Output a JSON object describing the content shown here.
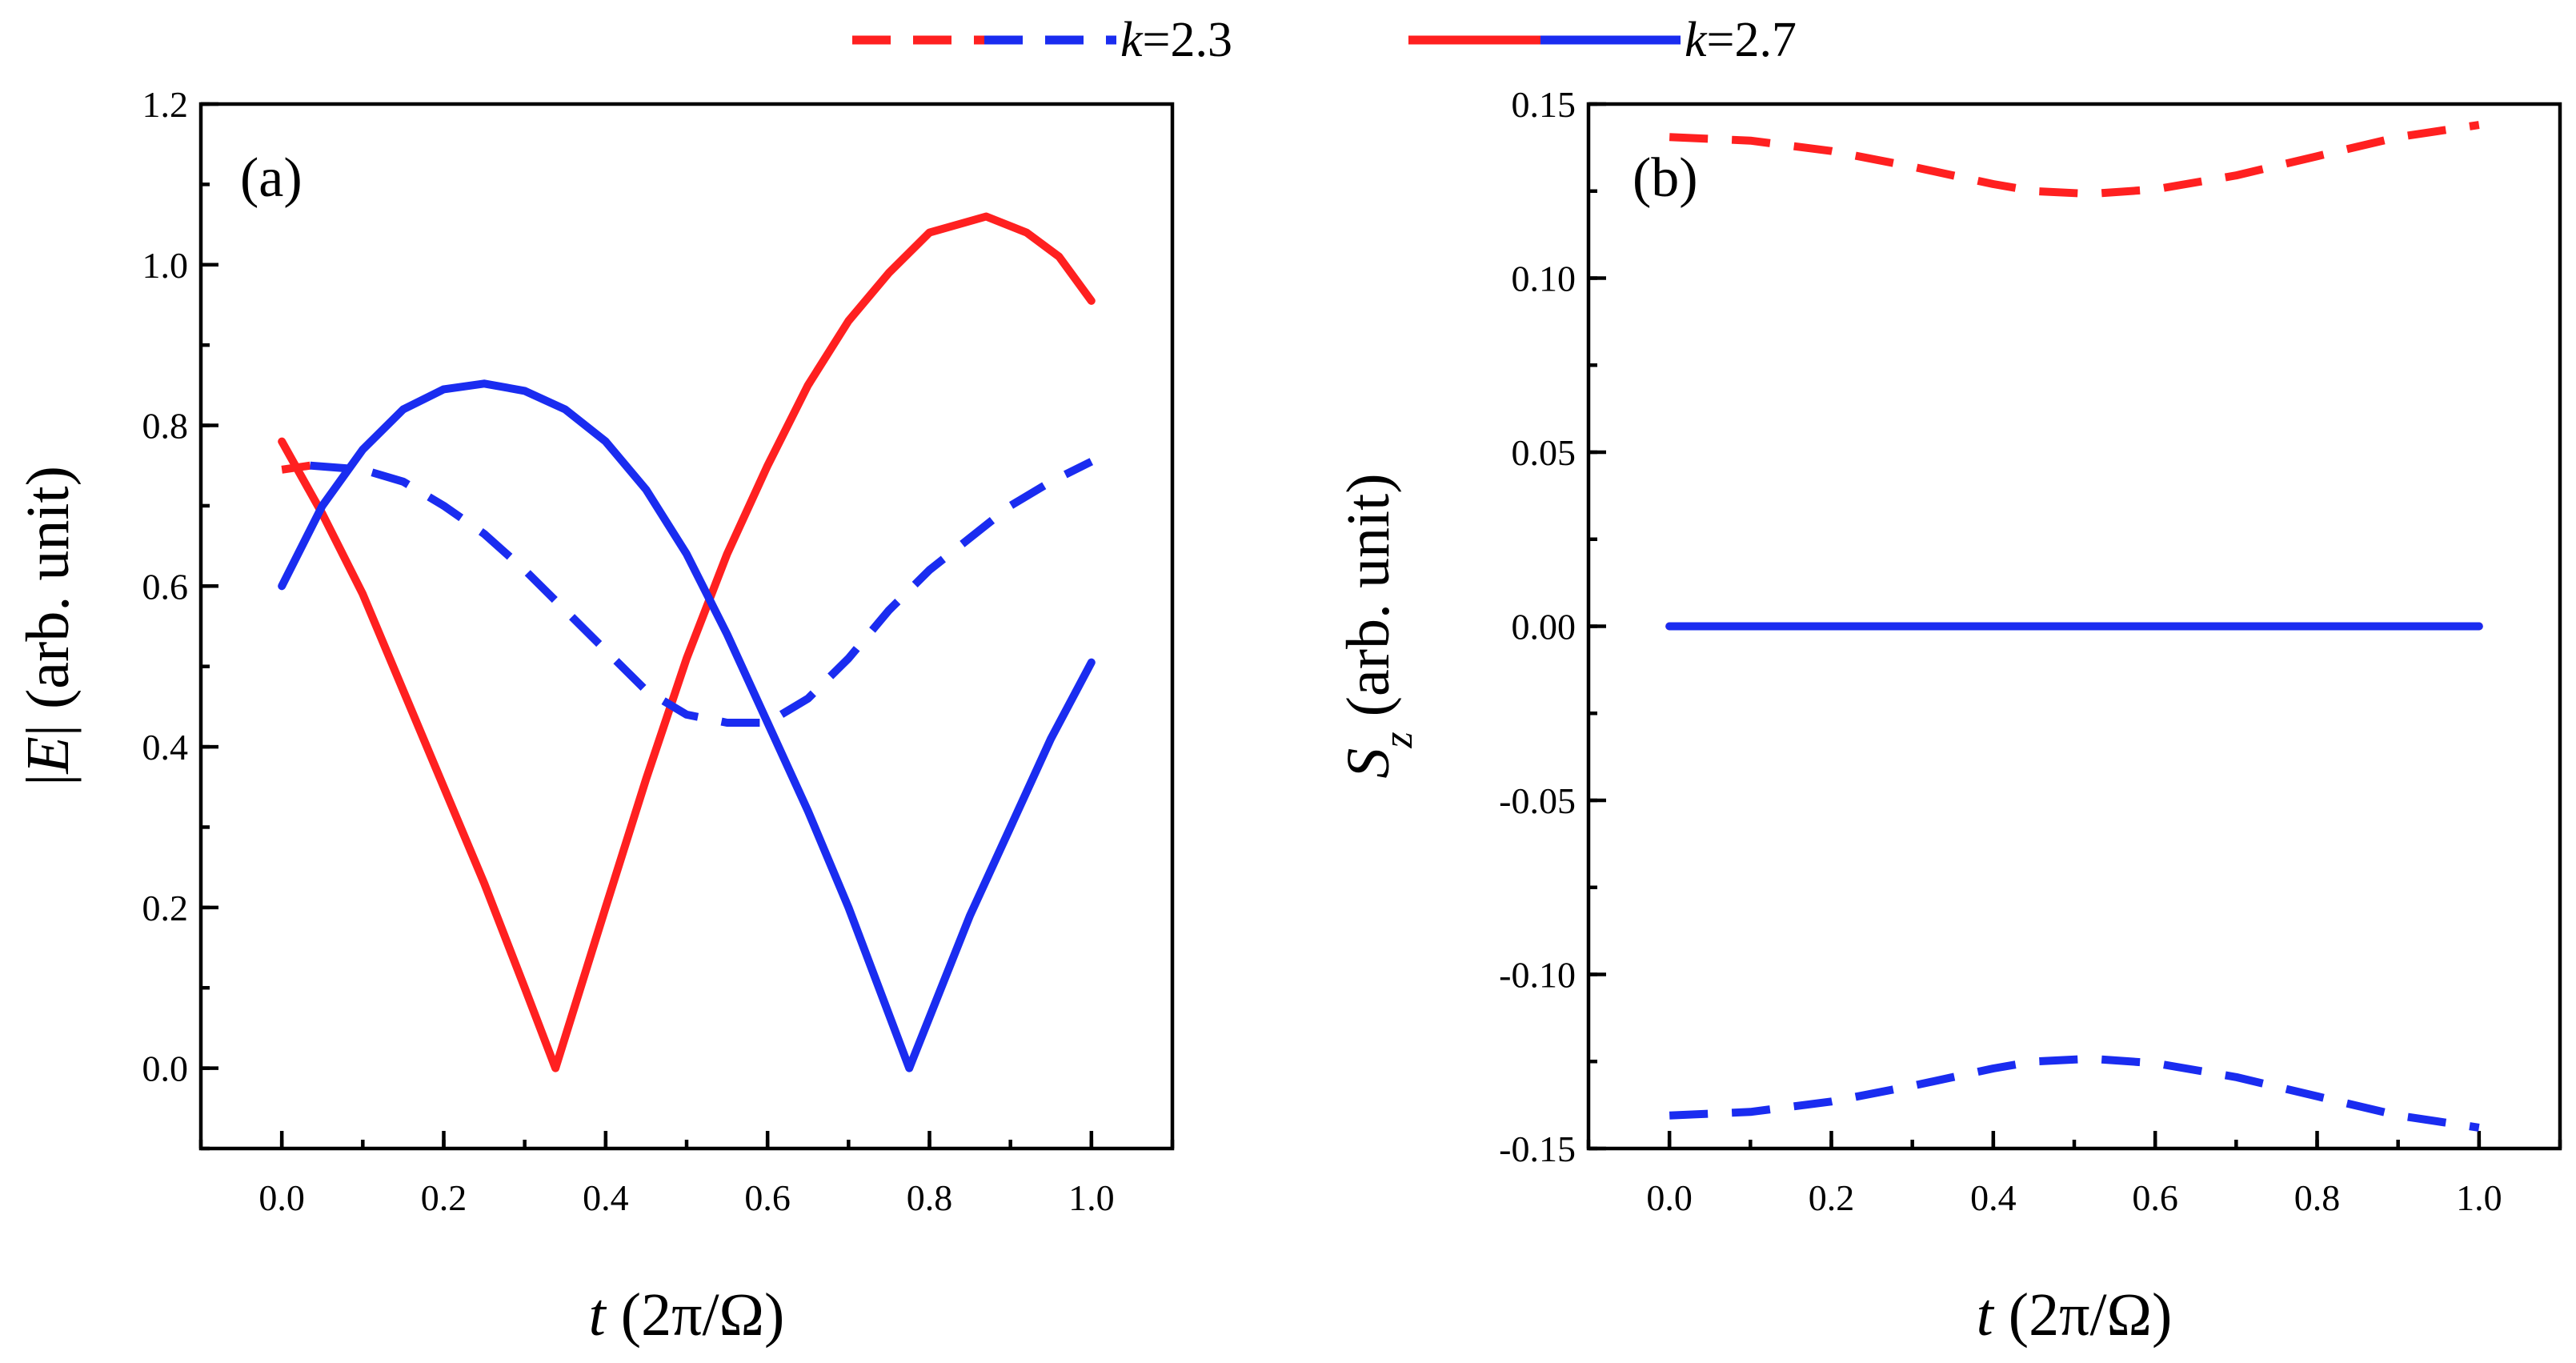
{
  "legend": {
    "entries": [
      {
        "var": "k",
        "rest": "=2.3",
        "style": "dashed",
        "colors": [
          "#ff2020",
          "#1a2cf0"
        ]
      },
      {
        "var": "k",
        "rest": "=2.7",
        "style": "solid",
        "colors": [
          "#ff2020",
          "#1a2cf0"
        ]
      }
    ]
  },
  "colors": {
    "red": "#ff2020",
    "blue": "#1a2cf0"
  },
  "chart_data": [
    {
      "type": "line",
      "panel_label": "(a)",
      "xlabel": {
        "var": "t",
        "rest": " (2π/Ω)"
      },
      "ylabel": {
        "prefix": "|",
        "var": "E",
        "suffix": "| (arb. unit)"
      },
      "xlim": [
        -0.1,
        1.1
      ],
      "ylim": [
        -0.1,
        1.2
      ],
      "xticks": [
        0.0,
        0.2,
        0.4,
        0.6,
        0.8,
        1.0
      ],
      "xtick_labels": [
        "0.0",
        "0.2",
        "0.4",
        "0.6",
        "0.8",
        "1.0"
      ],
      "yticks": [
        0.0,
        0.2,
        0.4,
        0.6,
        0.8,
        1.0,
        1.2
      ],
      "ytick_labels": [
        "0.0",
        "0.2",
        "0.4",
        "0.6",
        "0.8",
        "1.0",
        "1.2"
      ],
      "series": [
        {
          "name": "k=2.7 red",
          "style": "solid",
          "color": "#ff2020",
          "x": [
            0.0,
            0.05,
            0.1,
            0.15,
            0.2,
            0.25,
            0.3,
            0.338,
            0.4,
            0.45,
            0.5,
            0.55,
            0.6,
            0.65,
            0.7,
            0.75,
            0.8,
            0.87,
            0.92,
            0.96,
            1.0
          ],
          "y": [
            0.78,
            0.69,
            0.59,
            0.47,
            0.35,
            0.23,
            0.1,
            0.0,
            0.2,
            0.36,
            0.51,
            0.64,
            0.75,
            0.85,
            0.93,
            0.99,
            1.04,
            1.06,
            1.04,
            1.01,
            0.955
          ]
        },
        {
          "name": "k=2.7 blue",
          "style": "solid",
          "color": "#1a2cf0",
          "x": [
            0.0,
            0.05,
            0.1,
            0.15,
            0.2,
            0.25,
            0.3,
            0.35,
            0.4,
            0.45,
            0.5,
            0.55,
            0.6,
            0.65,
            0.7,
            0.775,
            0.85,
            0.9,
            0.95,
            1.0
          ],
          "y": [
            0.6,
            0.7,
            0.77,
            0.82,
            0.845,
            0.852,
            0.843,
            0.82,
            0.78,
            0.72,
            0.64,
            0.54,
            0.43,
            0.32,
            0.2,
            0.0,
            0.19,
            0.3,
            0.41,
            0.505
          ]
        },
        {
          "name": "k=2.3 red",
          "style": "dashed",
          "color": "#ff2020",
          "x": [
            0.0,
            0.035
          ],
          "y": [
            0.745,
            0.75
          ]
        },
        {
          "name": "k=2.3 blue",
          "style": "dashed",
          "color": "#1a2cf0",
          "x": [
            0.035,
            0.1,
            0.15,
            0.2,
            0.25,
            0.3,
            0.35,
            0.4,
            0.45,
            0.5,
            0.55,
            0.6,
            0.65,
            0.7,
            0.75,
            0.8,
            0.85,
            0.9,
            0.95,
            1.0
          ],
          "y": [
            0.75,
            0.745,
            0.73,
            0.7,
            0.665,
            0.62,
            0.57,
            0.52,
            0.47,
            0.44,
            0.43,
            0.43,
            0.46,
            0.51,
            0.57,
            0.62,
            0.66,
            0.7,
            0.73,
            0.755
          ]
        }
      ]
    },
    {
      "type": "line",
      "panel_label": "(b)",
      "xlabel": {
        "var": "t",
        "rest": " (2π/Ω)"
      },
      "ylabel": {
        "var": "S",
        "sub": "z",
        "rest": " (arb. unit)"
      },
      "xlim": [
        -0.1,
        1.1
      ],
      "ylim": [
        -0.15,
        0.15
      ],
      "xticks": [
        0.0,
        0.2,
        0.4,
        0.6,
        0.8,
        1.0
      ],
      "xtick_labels": [
        "0.0",
        "0.2",
        "0.4",
        "0.6",
        "0.8",
        "1.0"
      ],
      "yticks": [
        -0.15,
        -0.1,
        -0.05,
        0.0,
        0.05,
        0.1,
        0.15
      ],
      "ytick_labels": [
        "-0.15",
        "-0.10",
        "-0.05",
        "0.00",
        "0.05",
        "0.10",
        "0.15"
      ],
      "series": [
        {
          "name": "k=2.3 red",
          "style": "dashed",
          "color": "#ff2020",
          "x": [
            0.0,
            0.1,
            0.2,
            0.3,
            0.4,
            0.45,
            0.52,
            0.6,
            0.7,
            0.8,
            0.9,
            1.0
          ],
          "y": [
            0.1405,
            0.1395,
            0.1365,
            0.132,
            0.127,
            0.125,
            0.1242,
            0.1255,
            0.1295,
            0.135,
            0.1405,
            0.144
          ]
        },
        {
          "name": "k=2.3 blue",
          "style": "dashed",
          "color": "#1a2cf0",
          "x": [
            0.0,
            0.1,
            0.2,
            0.3,
            0.4,
            0.45,
            0.52,
            0.6,
            0.7,
            0.8,
            0.9,
            1.0
          ],
          "y": [
            -0.1405,
            -0.1395,
            -0.1365,
            -0.132,
            -0.127,
            -0.125,
            -0.1242,
            -0.1255,
            -0.1295,
            -0.135,
            -0.1405,
            -0.144
          ]
        },
        {
          "name": "k=2.7 red",
          "style": "solid",
          "color": "#ff2020",
          "x": [
            0.0,
            1.0
          ],
          "y": [
            0.0,
            0.0
          ]
        },
        {
          "name": "k=2.7 blue",
          "style": "solid",
          "color": "#1a2cf0",
          "x": [
            0.0,
            1.0
          ],
          "y": [
            0.0,
            0.0
          ]
        }
      ]
    }
  ]
}
